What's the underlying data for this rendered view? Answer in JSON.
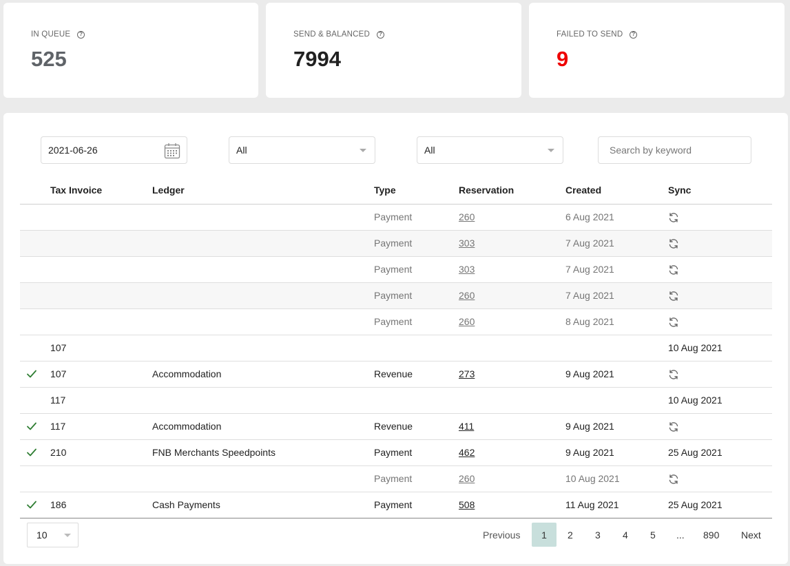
{
  "stats": [
    {
      "label": "IN QUEUE",
      "value": "525"
    },
    {
      "label": "SEND & BALANCED",
      "value": "7994"
    },
    {
      "label": "FAILED TO SEND",
      "value": "9"
    }
  ],
  "filters": {
    "date": "2021-06-26",
    "select1": "All",
    "select2": "All",
    "search_placeholder": "Search by keyword"
  },
  "columns": {
    "tax_invoice": "Tax Invoice",
    "ledger": "Ledger",
    "type": "Type",
    "reservation": "Reservation",
    "created": "Created",
    "sync": "Sync"
  },
  "rows": [
    {
      "check": "",
      "tax_invoice": "",
      "ledger": "",
      "type": "Payment",
      "reservation": "260",
      "created": "6 Aug 2021",
      "sync": ""
    },
    {
      "check": "",
      "tax_invoice": "",
      "ledger": "",
      "type": "Payment",
      "reservation": "303",
      "created": "7 Aug 2021",
      "sync": ""
    },
    {
      "check": "",
      "tax_invoice": "",
      "ledger": "",
      "type": "Payment",
      "reservation": "303",
      "created": "7 Aug 2021",
      "sync": ""
    },
    {
      "check": "",
      "tax_invoice": "",
      "ledger": "",
      "type": "Payment",
      "reservation": "260",
      "created": "7 Aug 2021",
      "sync": ""
    },
    {
      "check": "",
      "tax_invoice": "",
      "ledger": "",
      "type": "Payment",
      "reservation": "260",
      "created": "8 Aug 2021",
      "sync": ""
    },
    {
      "check": "",
      "tax_invoice": "107",
      "ledger": "",
      "type": "",
      "reservation": "",
      "created": "",
      "sync": "10 Aug 2021"
    },
    {
      "check": "✓",
      "tax_invoice": "107",
      "ledger": "Accommodation",
      "type": "Revenue",
      "reservation": "273",
      "created": "9 Aug 2021",
      "sync": ""
    },
    {
      "check": "",
      "tax_invoice": "117",
      "ledger": "",
      "type": "",
      "reservation": "",
      "created": "",
      "sync": "10 Aug 2021"
    },
    {
      "check": "✓",
      "tax_invoice": "117",
      "ledger": "Accommodation",
      "type": "Revenue",
      "reservation": "411",
      "created": "9 Aug 2021",
      "sync": ""
    },
    {
      "check": "✓",
      "tax_invoice": "210",
      "ledger": "FNB Merchants Speedpoints",
      "type": "Payment",
      "reservation": "462",
      "created": "9 Aug 2021",
      "sync": "25 Aug 2021"
    },
    {
      "check": "",
      "tax_invoice": "",
      "ledger": "",
      "type": "Payment",
      "reservation": "260",
      "created": "10 Aug 2021",
      "sync": ""
    },
    {
      "check": "✓",
      "tax_invoice": "186",
      "ledger": "Cash Payments",
      "type": "Payment",
      "reservation": "508",
      "created": "11 Aug 2021",
      "sync": "25 Aug 2021"
    }
  ],
  "pagination": {
    "page_size": "10",
    "previous": "Previous",
    "pages": [
      "1",
      "2",
      "3",
      "4",
      "5"
    ],
    "ellipsis": "...",
    "last": "890",
    "next": "Next"
  },
  "colors": {
    "failed": "#ee0000",
    "check": "#2e7d32",
    "active_page": "#c8dfdc"
  }
}
